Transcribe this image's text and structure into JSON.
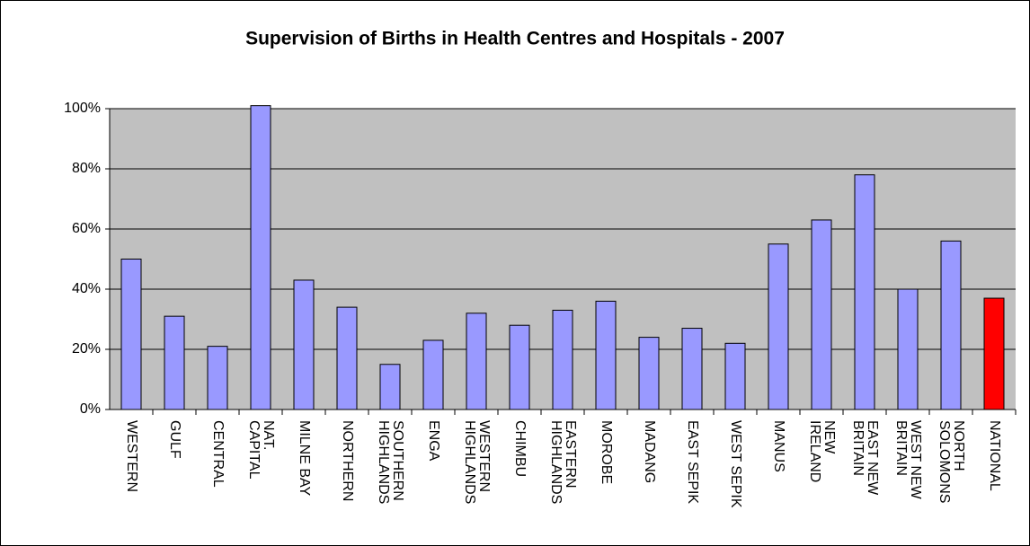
{
  "chart_data": {
    "type": "bar",
    "title": "Supervision of Births in Health Centres and Hospitals - 2007",
    "categories": [
      [
        "WESTERN"
      ],
      [
        "GULF"
      ],
      [
        "CENTRAL"
      ],
      [
        "NAT.",
        "CAPITAL"
      ],
      [
        "MILNE BAY"
      ],
      [
        "NORTHERN"
      ],
      [
        "SOUTHERN",
        "HIGHLANDS"
      ],
      [
        "ENGA"
      ],
      [
        "WESTERN",
        "HIGHLANDS"
      ],
      [
        "CHIMBU"
      ],
      [
        "EASTERN",
        "HIGHLANDS"
      ],
      [
        "MOROBE"
      ],
      [
        "MADANG"
      ],
      [
        "EAST SEPIK"
      ],
      [
        "WEST SEPIK"
      ],
      [
        "MANUS"
      ],
      [
        "NEW",
        "IRELAND"
      ],
      [
        "EAST NEW",
        "BRITAIN"
      ],
      [
        "WEST NEW",
        "BRITAIN"
      ],
      [
        "NORTH",
        "SOLOMONS"
      ],
      [
        "NATIONAL"
      ]
    ],
    "values": [
      50,
      31,
      21,
      101,
      43,
      34,
      15,
      23,
      32,
      28,
      33,
      36,
      24,
      27,
      22,
      55,
      63,
      78,
      40,
      56,
      37
    ],
    "colors": [
      "#9999ff",
      "#9999ff",
      "#9999ff",
      "#9999ff",
      "#9999ff",
      "#9999ff",
      "#9999ff",
      "#9999ff",
      "#9999ff",
      "#9999ff",
      "#9999ff",
      "#9999ff",
      "#9999ff",
      "#9999ff",
      "#9999ff",
      "#9999ff",
      "#9999ff",
      "#9999ff",
      "#9999ff",
      "#9999ff",
      "#ff0000"
    ],
    "ylim": [
      0,
      100
    ],
    "yticks": [
      {
        "value": 0,
        "label": "0%"
      },
      {
        "value": 20,
        "label": "20%"
      },
      {
        "value": 40,
        "label": "40%"
      },
      {
        "value": 60,
        "label": "60%"
      },
      {
        "value": 80,
        "label": "80%"
      },
      {
        "value": 100,
        "label": "100%"
      }
    ],
    "grid": true
  }
}
